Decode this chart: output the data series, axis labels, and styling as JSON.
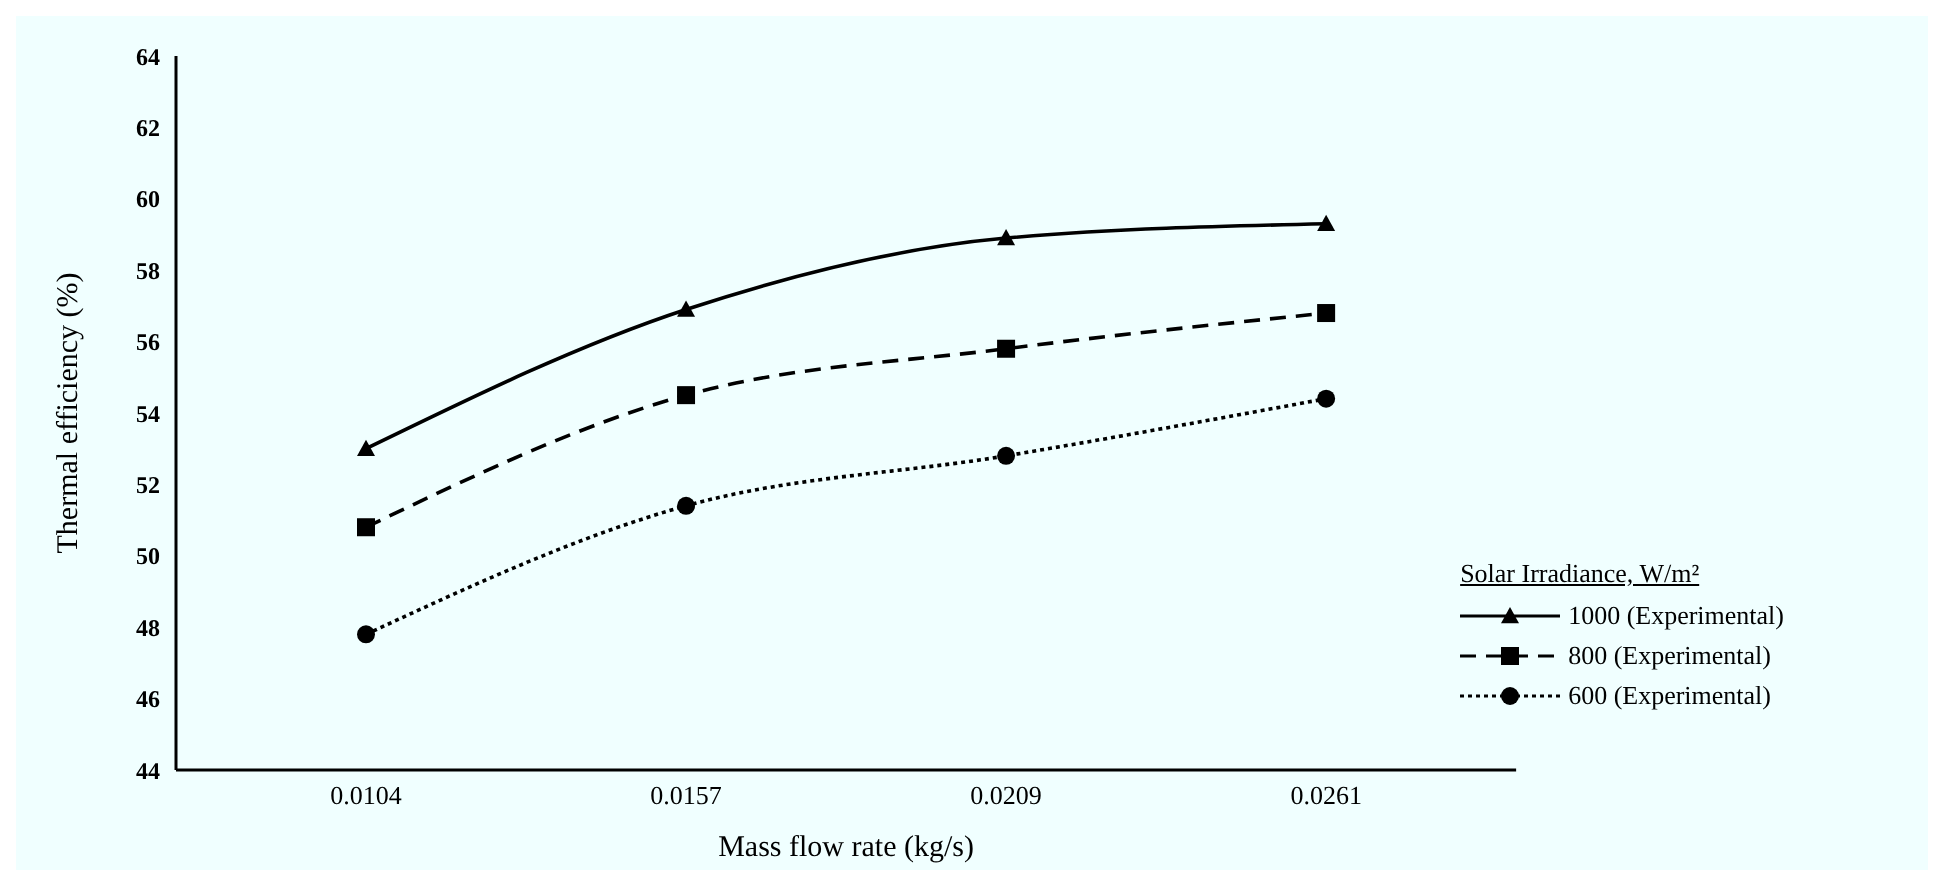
{
  "chart_data": {
    "type": "line",
    "xlabel": "Mass flow rate (kg/s)",
    "ylabel": "Thermal efficiency (%)",
    "legend_title": "Solar Irradiance, W/m²",
    "categories": [
      "0.0104",
      "0.0157",
      "0.0209",
      "0.0261"
    ],
    "ylim": [
      44,
      64
    ],
    "yticks": [
      44,
      46,
      48,
      50,
      52,
      54,
      56,
      58,
      60,
      62,
      64
    ],
    "grid": false,
    "legend": "bottom right",
    "series": [
      {
        "name": "1000 (Experimental)",
        "color": "#000000",
        "marker": "triangle",
        "line_style": "solid",
        "values": [
          53.0,
          56.9,
          58.9,
          59.3
        ]
      },
      {
        "name": "800 (Experimental)",
        "color": "#000000",
        "marker": "square",
        "line_style": "dashed",
        "values": [
          50.8,
          54.5,
          55.8,
          56.8
        ]
      },
      {
        "name": "600 (Experimental)",
        "color": "#000000",
        "marker": "circle",
        "line_style": "dotted",
        "values": [
          47.8,
          51.4,
          52.8,
          54.4
        ]
      }
    ]
  }
}
